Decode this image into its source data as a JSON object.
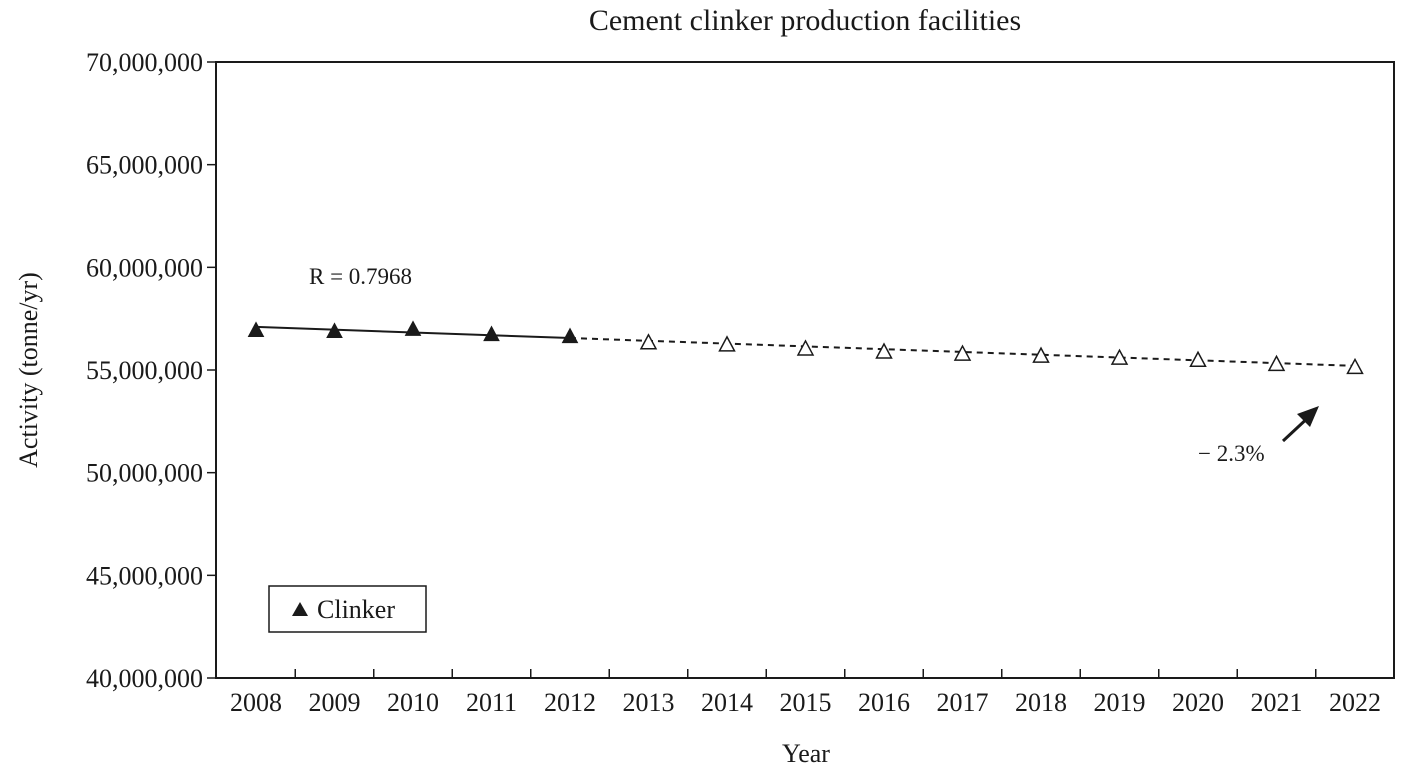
{
  "chart_data": {
    "type": "line",
    "title": "Cement clinker production facilities",
    "xlabel": "Year",
    "ylabel": "Activity (tonne/yr)",
    "categories": [
      "2008",
      "2009",
      "2010",
      "2011",
      "2012",
      "2013",
      "2014",
      "2015",
      "2016",
      "2017",
      "2018",
      "2019",
      "2020",
      "2021",
      "2022"
    ],
    "ylim": [
      40000000,
      70000000
    ],
    "yticks": [
      40000000,
      45000000,
      50000000,
      55000000,
      60000000,
      65000000,
      70000000
    ],
    "ytick_labels": [
      "40,000,000",
      "45,000,000",
      "50,000,000",
      "55,000,000",
      "60,000,000",
      "65,000,000",
      "70,000,000"
    ],
    "series": [
      {
        "name": "Clinker",
        "x": [
          "2008",
          "2009",
          "2010",
          "2011",
          "2012"
        ],
        "values": [
          56950000,
          56900000,
          57000000,
          56750000,
          56650000
        ],
        "marker": "filled-triangle",
        "line": "solid"
      },
      {
        "x": [
          "2013",
          "2014",
          "2015",
          "2016",
          "2017",
          "2018",
          "2019",
          "2020",
          "2021",
          "2022"
        ],
        "values": [
          56350000,
          56250000,
          56050000,
          55900000,
          55800000,
          55700000,
          55600000,
          55500000,
          55300000,
          55150000
        ],
        "marker": "open-triangle",
        "line": "dashed"
      }
    ],
    "trendline": {
      "solid_from": "2008",
      "solid_to": "2012",
      "dashed_to": "2022",
      "start_value": 57100000,
      "end_value": 55200000
    },
    "annotations": {
      "r_label": "R = 0.7968",
      "pct_label": "− 2.3%"
    },
    "legend": {
      "position": "bottom-left",
      "label": "Clinker"
    },
    "grid": false,
    "colors": {
      "line": "#1a1a1a",
      "background": "#ffffff"
    }
  }
}
